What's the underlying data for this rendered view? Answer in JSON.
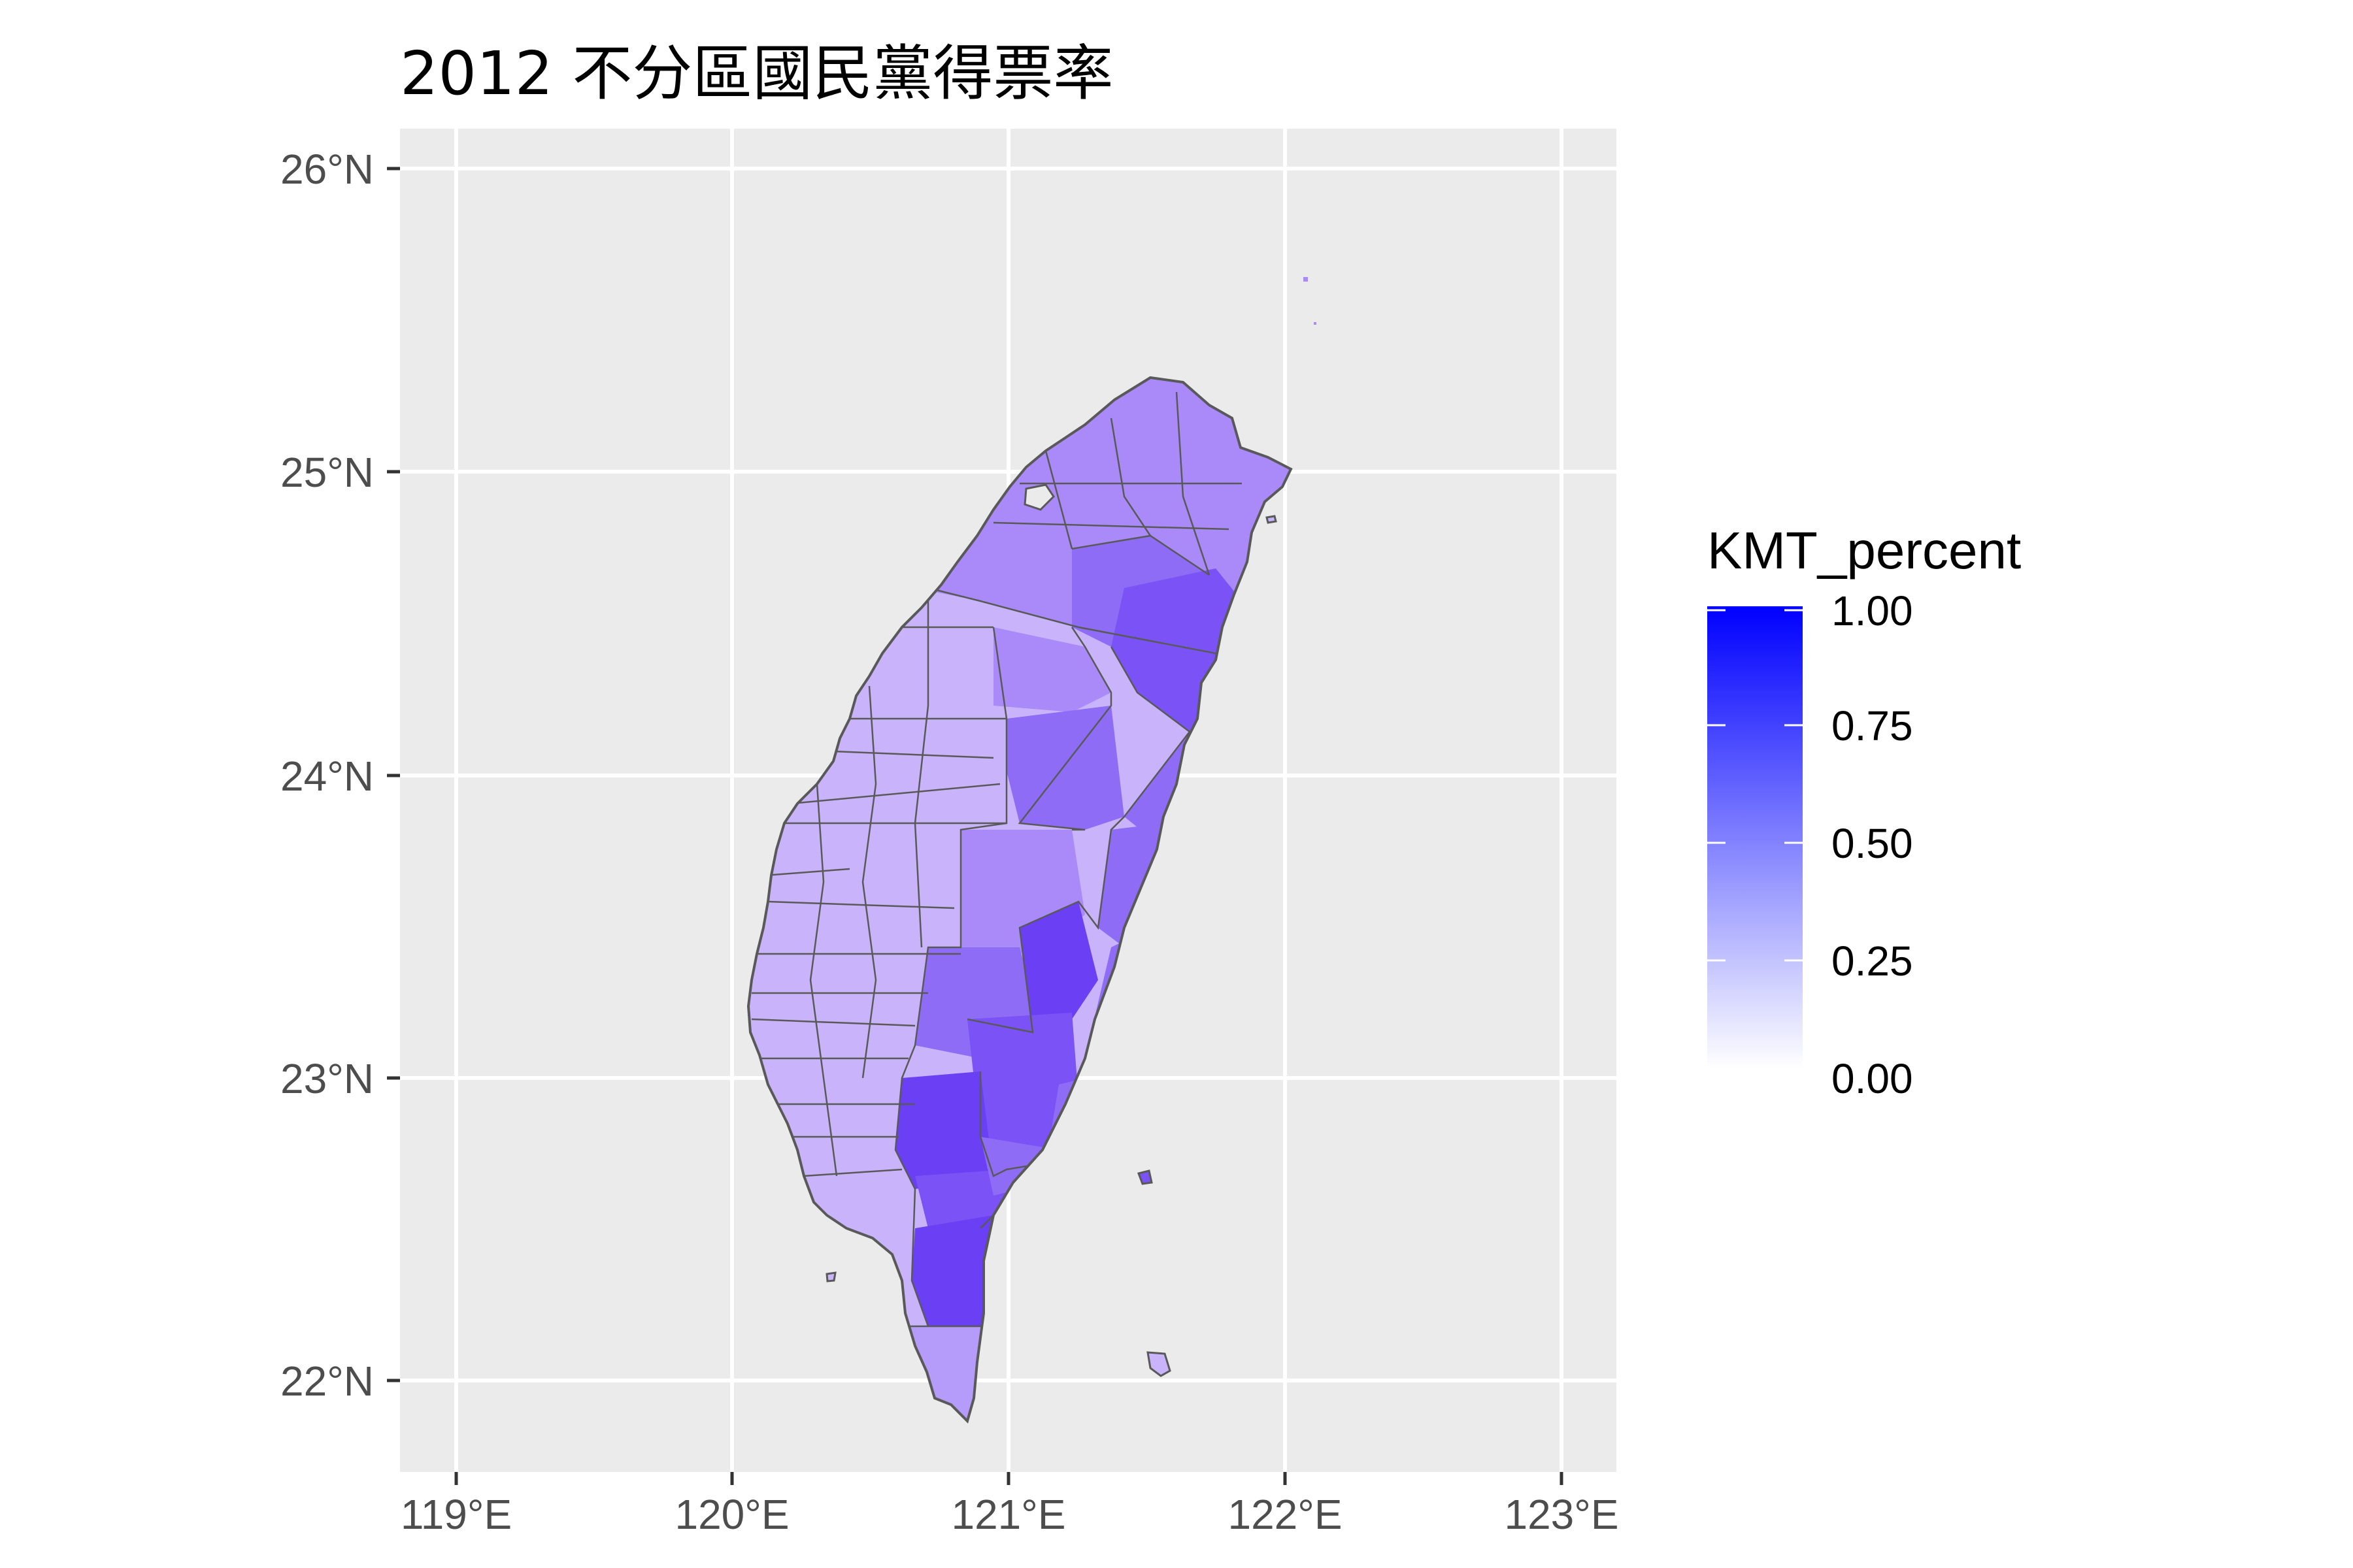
{
  "title": "2012 不分區國民黨得票率",
  "axes": {
    "y_ticks": [
      "26°N",
      "25°N",
      "24°N",
      "23°N",
      "22°N"
    ],
    "x_ticks": [
      "119°E",
      "120°E",
      "121°E",
      "122°E",
      "123°E"
    ]
  },
  "legend": {
    "title": "KMT_percent",
    "labels": [
      "1.00",
      "0.75",
      "0.50",
      "0.25",
      "0.00"
    ],
    "low_color": "#ffffff",
    "high_color": "#0000ff"
  },
  "colors": {
    "panel_bg": "#ebebeb",
    "grid": "#ffffff",
    "border": "#595959",
    "west_fill": "#c9b4fb",
    "north_fill": "#a98af8",
    "central_fill": "#8f6cf6",
    "mountain_fill": "#7a52f5",
    "south_fill": "#6b3ff3",
    "tip_fill": "#b59bfa"
  }
}
